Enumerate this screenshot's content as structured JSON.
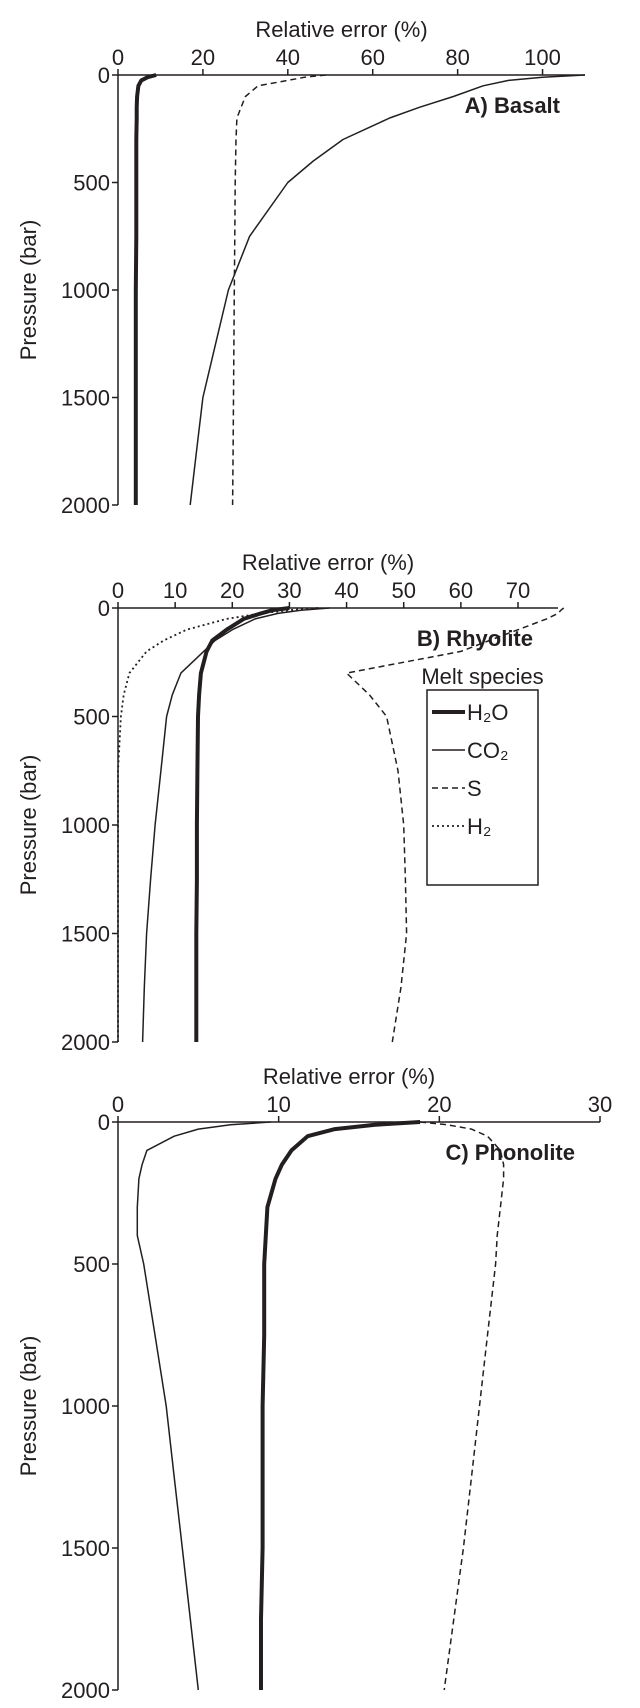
{
  "chart_data": [
    {
      "type": "line",
      "x_label": "Relative error (%)",
      "y_label": "Pressure (bar)",
      "annotation": "A) Basalt",
      "xlim": [
        0,
        110
      ],
      "xticks": [
        0,
        20,
        40,
        60,
        80,
        100
      ],
      "ylim": [
        0,
        2000
      ],
      "yticks": [
        0,
        500,
        1000,
        1500,
        2000
      ],
      "y_inverted": true,
      "legend": false,
      "y": [
        0,
        10,
        25,
        50,
        100,
        150,
        200,
        300,
        400,
        500,
        750,
        1000,
        1250,
        1500,
        1750,
        2000
      ],
      "series": [
        {
          "name": "H₂O",
          "color": "#231f20",
          "style": "thick",
          "values": [
            9,
            7,
            5.5,
            4.8,
            4.5,
            4.4,
            4.4,
            4.3,
            4.3,
            4.3,
            4.3,
            4.2,
            4.2,
            4.2,
            4.2,
            4.2
          ]
        },
        {
          "name": "CO₂",
          "color": "#231f20",
          "style": "solid",
          "values": [
            110,
            100,
            92,
            86,
            79,
            71,
            64,
            53,
            46,
            40,
            31,
            26,
            23,
            20,
            18.5,
            17
          ]
        },
        {
          "name": "S",
          "color": "#231f20",
          "style": "dashed",
          "values": [
            49,
            44,
            40,
            33,
            30,
            29,
            28,
            27.8,
            27.7,
            27.6,
            27.5,
            27.4,
            27.3,
            27.2,
            27.1,
            27
          ]
        }
      ]
    },
    {
      "type": "line",
      "x_label": "Relative error (%)",
      "y_label": "Pressure (bar)",
      "annotation": "B) Rhyolite",
      "xlim": [
        0,
        77
      ],
      "xticks": [
        0,
        10,
        20,
        30,
        40,
        50,
        60,
        70
      ],
      "ylim": [
        0,
        2000
      ],
      "yticks": [
        0,
        500,
        1000,
        1500,
        2000
      ],
      "y_inverted": true,
      "legend": true,
      "legend_title": "Melt species",
      "y": [
        0,
        10,
        25,
        50,
        100,
        150,
        200,
        300,
        400,
        500,
        750,
        1000,
        1250,
        1500,
        1750,
        2000
      ],
      "series": [
        {
          "name": "H₂O",
          "color": "#231f20",
          "style": "thick",
          "values": [
            30,
            27,
            25,
            22,
            19,
            16.5,
            15.5,
            14.5,
            14.2,
            14,
            13.9,
            13.8,
            13.8,
            13.7,
            13.7,
            13.7
          ]
        },
        {
          "name": "CO₂",
          "color": "#231f20",
          "style": "solid",
          "values": [
            37,
            32,
            28,
            24,
            20,
            17,
            15,
            11,
            9.5,
            8.5,
            7.5,
            6.5,
            5.7,
            5,
            4.6,
            4.3
          ]
        },
        {
          "name": "S",
          "color": "#231f20",
          "style": "dashed",
          "values": [
            78,
            77.5,
            77,
            75,
            70,
            65,
            60,
            40,
            44,
            47,
            49,
            50,
            50.3,
            50.5,
            49.5,
            48
          ]
        },
        {
          "name": "H₂",
          "color": "#231f20",
          "style": "dotted",
          "values": [
            35,
            30,
            25,
            19,
            12,
            8,
            5,
            2,
            1,
            0.5,
            0,
            0,
            0,
            0,
            0,
            0
          ]
        }
      ]
    },
    {
      "type": "line",
      "x_label": "Relative error (%)",
      "y_label": "Pressure (bar)",
      "annotation": "C) Phonolite",
      "xlim": [
        0,
        30
      ],
      "xticks": [
        0,
        10,
        20,
        30
      ],
      "ylim": [
        0,
        2000
      ],
      "yticks": [
        0,
        500,
        1000,
        1500,
        2000
      ],
      "y_inverted": true,
      "legend": false,
      "y": [
        0,
        10,
        25,
        50,
        100,
        150,
        200,
        300,
        400,
        500,
        750,
        1000,
        1250,
        1500,
        1750,
        2000
      ],
      "series": [
        {
          "name": "H₂O",
          "color": "#231f20",
          "style": "thick",
          "values": [
            18.8,
            16,
            13.5,
            11.8,
            10.8,
            10.2,
            9.8,
            9.3,
            9.2,
            9.1,
            9.1,
            9,
            9,
            9,
            8.9,
            8.9
          ]
        },
        {
          "name": "CO₂",
          "color": "#231f20",
          "style": "solid",
          "values": [
            9.5,
            7,
            5,
            3.5,
            1.8,
            1.5,
            1.3,
            1.2,
            1.2,
            1.6,
            2.3,
            3,
            3.5,
            4,
            4.5,
            5
          ]
        },
        {
          "name": "S",
          "color": "#231f20",
          "style": "dashed",
          "values": [
            18.8,
            20.5,
            22,
            23,
            23.8,
            24,
            24,
            23.8,
            23.6,
            23.5,
            23,
            22.5,
            22,
            21.5,
            20.9,
            20.3
          ]
        }
      ]
    }
  ]
}
